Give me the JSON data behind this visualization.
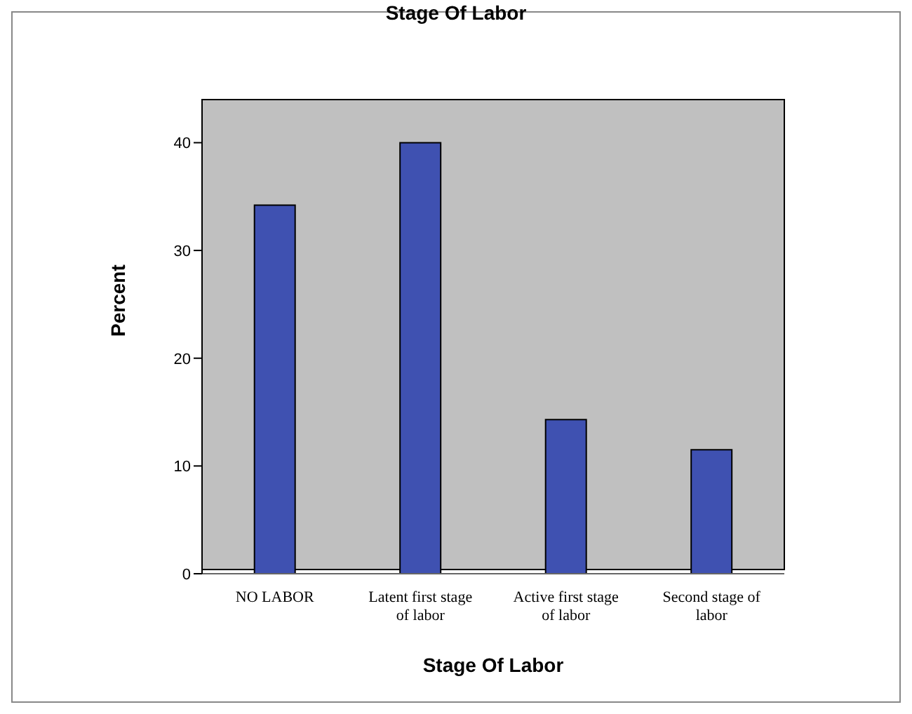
{
  "chart_data": {
    "type": "bar",
    "title": "Stage Of Labor",
    "xlabel": "Stage Of Labor",
    "ylabel": "Percent",
    "categories": [
      "NO LABOR",
      "Latent first stage of labor",
      "Active first stage of labor",
      "Second stage of labor"
    ],
    "values": [
      34.2,
      40.0,
      14.3,
      11.5
    ],
    "color": "#3f51b1",
    "ylim": [
      0,
      44
    ],
    "yticks": [
      0,
      10,
      20,
      30,
      40
    ]
  }
}
